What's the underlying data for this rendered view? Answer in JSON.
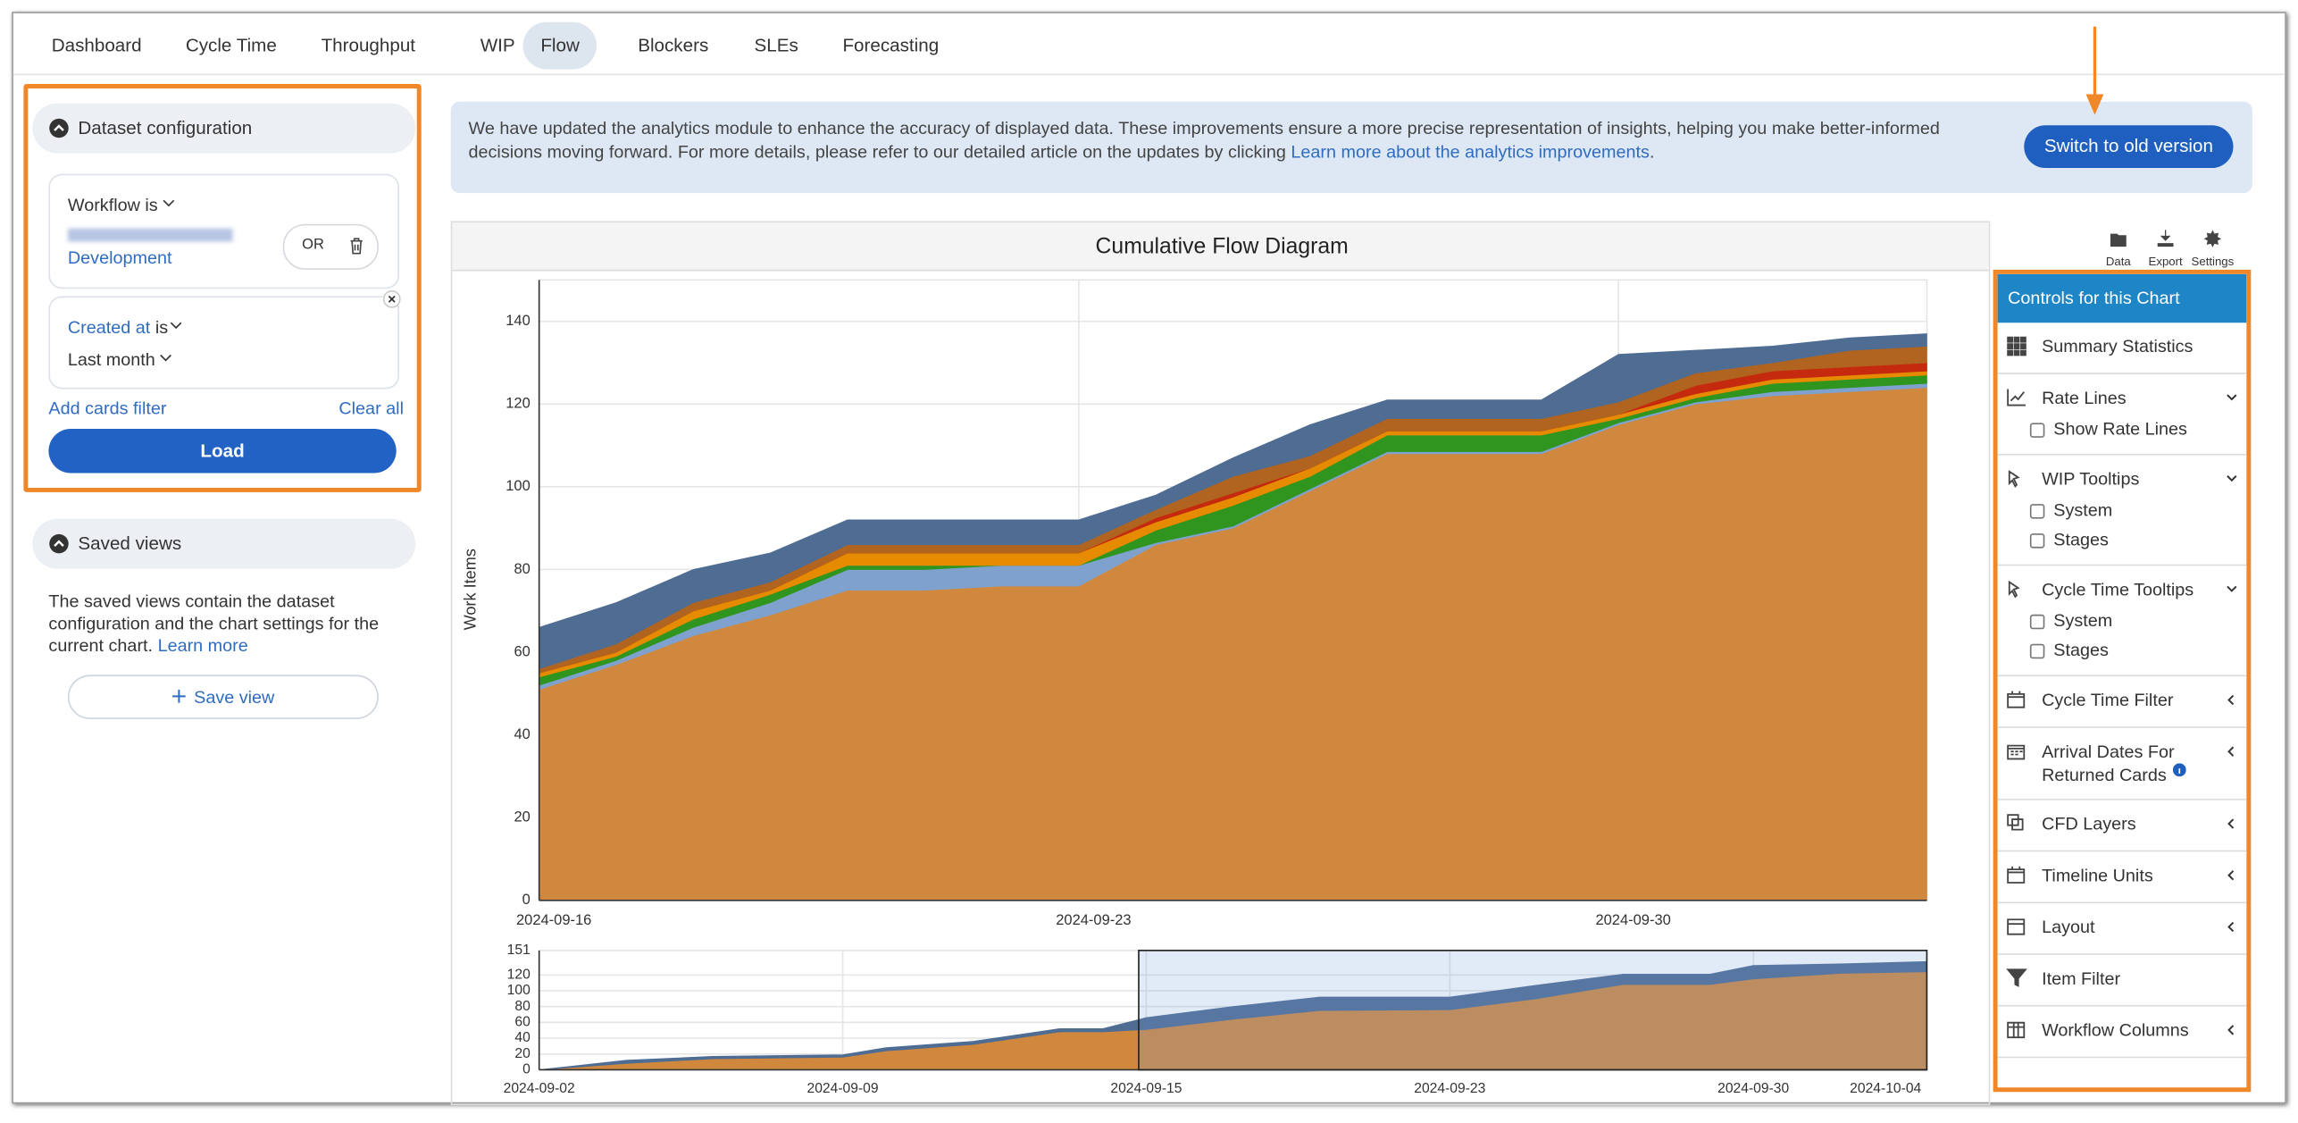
{
  "nav": {
    "tabs": [
      "Dashboard",
      "Cycle Time",
      "Throughput",
      "WIP",
      "Flow",
      "Blockers",
      "SLEs",
      "Forecasting"
    ],
    "active": 4
  },
  "sidebar": {
    "dataset": {
      "title": "Dataset configuration",
      "workflow_label": "Workflow is",
      "workflow_value": "Development",
      "or": "OR",
      "created_label": "Created at",
      "created_is": "is",
      "range": "Last month",
      "add_filter": "Add cards filter",
      "clear": "Clear all",
      "load": "Load"
    },
    "saved": {
      "title": "Saved views",
      "text": "The saved views contain the dataset configuration and the chart settings for the current chart.",
      "link": "Learn more",
      "button": "Save view"
    }
  },
  "banner": {
    "text": "We have updated the analytics module to enhance the accuracy of displayed data. These improvements ensure a more precise representation of insights, helping you make better-informed decisions moving forward. For more details, please refer to our detailed article on the updates by clicking",
    "link": "Learn more about the analytics improvements",
    "end": ".",
    "button": "Switch to old version"
  },
  "chart_panel": {
    "tools": [
      "Data",
      "Export",
      "Settings"
    ]
  },
  "chart_data": [
    {
      "type": "area",
      "stacked": true,
      "title": "Cumulative Flow Diagram",
      "y_label": "Work Items",
      "x": [
        "2024-09-16",
        "2024-09-17",
        "2024-09-18",
        "2024-09-19",
        "2024-09-20",
        "2024-09-21",
        "2024-09-22",
        "2024-09-23",
        "2024-09-24",
        "2024-09-25",
        "2024-09-26",
        "2024-09-27",
        "2024-09-28",
        "2024-09-29",
        "2024-09-30",
        "2024-10-01",
        "2024-10-02",
        "2024-10-03",
        "2024-10-04"
      ],
      "xlim": [
        "2024-09-16",
        "2024-10-04"
      ],
      "xticks": [
        "2024-09-16",
        "2024-09-23",
        "2024-09-30"
      ],
      "ylim": [
        0,
        150
      ],
      "yticks": [
        0,
        20,
        40,
        60,
        80,
        100,
        120,
        140
      ],
      "grid": true,
      "series": [
        {
          "color": "#d0883f",
          "values": [
            51,
            57,
            64,
            69,
            75,
            75,
            76,
            76,
            86,
            90,
            99,
            108,
            108,
            108,
            115,
            120,
            122,
            123,
            124
          ]
        },
        {
          "color": "#7ea2cd",
          "values": [
            1,
            1,
            2,
            3,
            5,
            5,
            5,
            5,
            0.5,
            0.5,
            0.5,
            0.5,
            0.5,
            0.5,
            0.5,
            0.5,
            1,
            1,
            1
          ]
        },
        {
          "color": "#2f951f",
          "values": [
            2,
            1,
            2,
            2,
            1,
            1,
            0,
            0,
            3,
            5,
            3,
            4,
            4,
            4,
            1,
            1,
            2,
            2,
            2
          ]
        },
        {
          "color": "#e68a00",
          "values": [
            1,
            1,
            2,
            1,
            3,
            3,
            3,
            3,
            2,
            2,
            2,
            1,
            1,
            1,
            1,
            1,
            1,
            1,
            1
          ]
        },
        {
          "color": "#c5290e",
          "values": [
            0,
            0,
            0,
            0,
            0,
            0,
            0,
            0,
            1,
            1,
            0,
            0,
            0,
            0,
            0,
            2,
            2,
            2,
            2
          ]
        },
        {
          "color": "#b0641f",
          "values": [
            1,
            2,
            2,
            2,
            2,
            2,
            2,
            2,
            2,
            4,
            3,
            3,
            3,
            3,
            3,
            3,
            2,
            4,
            4
          ]
        },
        {
          "color": "#4f6c93",
          "values": [
            10,
            10,
            8,
            7,
            6,
            6,
            6,
            6,
            3.5,
            4.5,
            7.5,
            4.5,
            4.5,
            4.5,
            11.5,
            5.5,
            4,
            3,
            3
          ]
        }
      ]
    },
    {
      "type": "area",
      "stacked": true,
      "x": [
        "2024-09-02",
        "2024-09-04",
        "2024-09-06",
        "2024-09-09",
        "2024-09-10",
        "2024-09-12",
        "2024-09-14",
        "2024-09-15",
        "2024-09-16",
        "2024-09-18",
        "2024-09-20",
        "2024-09-23",
        "2024-09-25",
        "2024-09-27",
        "2024-09-29",
        "2024-09-30",
        "2024-10-02",
        "2024-10-04"
      ],
      "xlim": [
        "2024-09-02",
        "2024-10-04"
      ],
      "xticks": [
        "2024-09-02",
        "2024-09-09",
        {
          "value": "2024-09-16",
          "label": "2024-09-15"
        },
        "2024-09-23",
        "2024-09-30",
        "2024-10-04"
      ],
      "ylim": [
        0,
        151
      ],
      "yticks": [
        0,
        20,
        40,
        60,
        80,
        100,
        120,
        151
      ],
      "grid": true,
      "series": [
        {
          "color": "#d0883f",
          "values": [
            0,
            8,
            14,
            16,
            24,
            32,
            48,
            48,
            51,
            64,
            75,
            76,
            90,
            108,
            108,
            115,
            122,
            124
          ]
        },
        {
          "color": "#4f6c93",
          "values": [
            0,
            4,
            3,
            3,
            4,
            4,
            4,
            4,
            15,
            16,
            17,
            16,
            17,
            13,
            13,
            17,
            12,
            13
          ]
        }
      ]
    }
  ],
  "controls": {
    "title": "Controls for this Chart",
    "items": [
      {
        "label": "Summary Statistics"
      },
      {
        "label": "Rate Lines",
        "chevron": "down",
        "options": [
          "Show Rate Lines"
        ]
      },
      {
        "label": "WIP Tooltips",
        "chevron": "down",
        "options": [
          "System",
          "Stages"
        ]
      },
      {
        "label": "Cycle Time Tooltips",
        "chevron": "down",
        "options": [
          "System",
          "Stages"
        ]
      },
      {
        "label": "Cycle Time Filter",
        "chevron": "left"
      },
      {
        "label": "Arrival Dates For Returned Cards",
        "chevron": "left",
        "info": true
      },
      {
        "label": "CFD Layers",
        "chevron": "left"
      },
      {
        "label": "Timeline Units",
        "chevron": "left"
      },
      {
        "label": "Layout",
        "chevron": "left"
      },
      {
        "label": "Item Filter"
      },
      {
        "label": "Workflow Columns",
        "chevron": "left"
      }
    ]
  }
}
